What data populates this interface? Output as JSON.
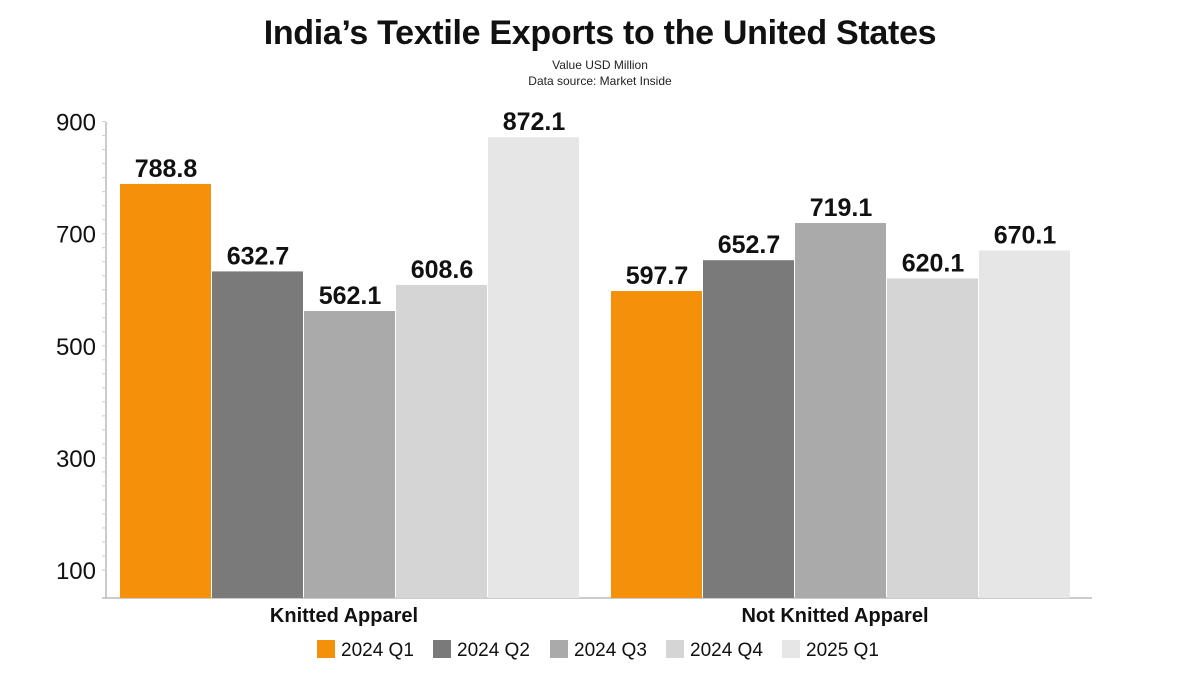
{
  "chart_data": {
    "type": "bar",
    "title": "India’s Textile Exports to the United States",
    "subtitle": "Value USD Million",
    "source": "Data source: Market Inside",
    "xlabel": "",
    "ylabel": "",
    "ylim": [
      50,
      910
    ],
    "yticks": [
      100,
      300,
      500,
      700,
      900
    ],
    "categories": [
      "Knitted Apparel",
      "Not Knitted Apparel"
    ],
    "series": [
      {
        "name": "2024 Q1",
        "color": "#f5900a",
        "values": [
          788.8,
          597.7
        ],
        "labels": [
          "788.8",
          "597.7"
        ]
      },
      {
        "name": "2024 Q2",
        "color": "#7a7a7a",
        "values": [
          632.7,
          652.7
        ],
        "labels": [
          "632.7",
          "652.7"
        ]
      },
      {
        "name": "2024 Q3",
        "color": "#aaaaaa",
        "values": [
          562.1,
          719.1
        ],
        "labels": [
          "562.1",
          "719.1"
        ]
      },
      {
        "name": "2024 Q4",
        "color": "#d5d5d5",
        "values": [
          608.6,
          620.1
        ],
        "labels": [
          "608.6",
          "620.1"
        ]
      },
      {
        "name": "2025 Q1",
        "color": "#e6e6e6",
        "values": [
          872.1,
          670.1
        ],
        "labels": [
          "872.1",
          "670.1"
        ]
      }
    ],
    "legend_position": "bottom",
    "grid": false
  }
}
